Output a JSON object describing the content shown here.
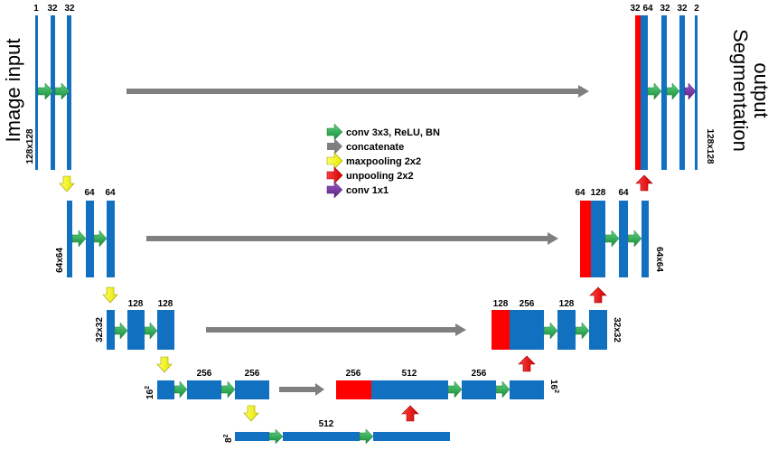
{
  "side_labels": {
    "input": "Image input",
    "output_line1": "Segmentation",
    "output_line2": "output"
  },
  "legend": {
    "conv": "conv 3x3, ReLU, BN",
    "concat": "concatenate",
    "maxpool": "maxpooling 2x2",
    "unpool": "unpooling 2x2",
    "conv1x1": "conv 1x1"
  },
  "colors": {
    "block": "#1170c0",
    "upsampled": "#ff0000",
    "conv": "#22b14c",
    "concat": "#7f7f7f",
    "maxpool": "#ffff00",
    "unpool": "#ff0000",
    "conv1x1": "#7030a0",
    "text": "#000000"
  },
  "sizes": {
    "l1_enc": "128x128",
    "l1_dec": "128x128",
    "l2_enc": "64x64",
    "l2_dec": "64x64",
    "l3_enc": "32x32",
    "l3_dec": "32x32",
    "l4_enc": "16",
    "l4_dec": "16",
    "l5": "8",
    "exp": "2"
  },
  "channels": {
    "enc1": [
      "1",
      "32",
      "32"
    ],
    "dec1": [
      "32",
      "64",
      "32",
      "32",
      "2"
    ],
    "enc2": [
      "64",
      "64"
    ],
    "dec2": [
      "64",
      "128",
      "64"
    ],
    "enc3": [
      "128",
      "128"
    ],
    "dec3": [
      "128",
      "256",
      "128"
    ],
    "enc4": [
      "256",
      "256"
    ],
    "dec4": [
      "256",
      "512",
      "256"
    ],
    "bottom": "512"
  }
}
